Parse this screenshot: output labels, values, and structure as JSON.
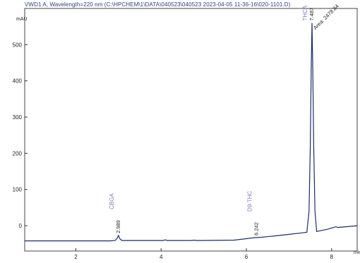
{
  "chart_data": {
    "type": "line",
    "title": "VWD1 A, Wavelength=220 nm (C:\\HPCHEM\\1\\DATA\\040523\\040523 2023-04-05 11-36-16\\020-1101.D)",
    "ylabel": "mAU",
    "xlabel": "min",
    "xlim": [
      0.8,
      8.6
    ],
    "ylim": [
      -70,
      600
    ],
    "x_ticks": [
      2,
      4,
      6,
      8
    ],
    "y_ticks": [
      0,
      100,
      200,
      300,
      400,
      500
    ],
    "grid": false,
    "series": [
      {
        "values": [
          [
            0.8,
            -42
          ],
          [
            2.8,
            -42
          ],
          [
            2.92,
            -41
          ],
          [
            2.97,
            -35
          ],
          [
            3.0,
            -27
          ],
          [
            3.03,
            -36
          ],
          [
            3.08,
            -41
          ],
          [
            4.05,
            -41
          ],
          [
            4.1,
            -39
          ],
          [
            4.14,
            -41
          ],
          [
            4.7,
            -41
          ],
          [
            4.78,
            -40
          ],
          [
            4.84,
            -41
          ],
          [
            5.7,
            -40
          ],
          [
            6.0,
            -36
          ],
          [
            6.2,
            -33
          ],
          [
            6.35,
            -32
          ],
          [
            6.7,
            -28
          ],
          [
            7.0,
            -24
          ],
          [
            7.3,
            -20
          ],
          [
            7.42,
            -18
          ],
          [
            7.47,
            40
          ],
          [
            7.5,
            220
          ],
          [
            7.52,
            420
          ],
          [
            7.54,
            560
          ],
          [
            7.56,
            420
          ],
          [
            7.58,
            220
          ],
          [
            7.61,
            40
          ],
          [
            7.65,
            -16
          ],
          [
            7.9,
            -10
          ],
          [
            8.05,
            -5
          ],
          [
            8.1,
            -3
          ],
          [
            8.15,
            -5
          ],
          [
            8.6,
            0
          ]
        ]
      }
    ],
    "peaks": [
      {
        "name": "CBGA",
        "time": "2.989",
        "x": 3.0,
        "y": -27
      },
      {
        "name": "D9-THC",
        "time": "6.242",
        "x": 6.24,
        "y": -33
      },
      {
        "name": "THCA",
        "time": "7.487",
        "x": 7.54,
        "y": 560,
        "area": "Area: 2478.84"
      }
    ]
  },
  "colors": {
    "signal": "#1a2d6a",
    "frame": "#444444",
    "peak_name": "#7a7fc0",
    "annotation": "#222222",
    "title": "#2b3f7f"
  }
}
